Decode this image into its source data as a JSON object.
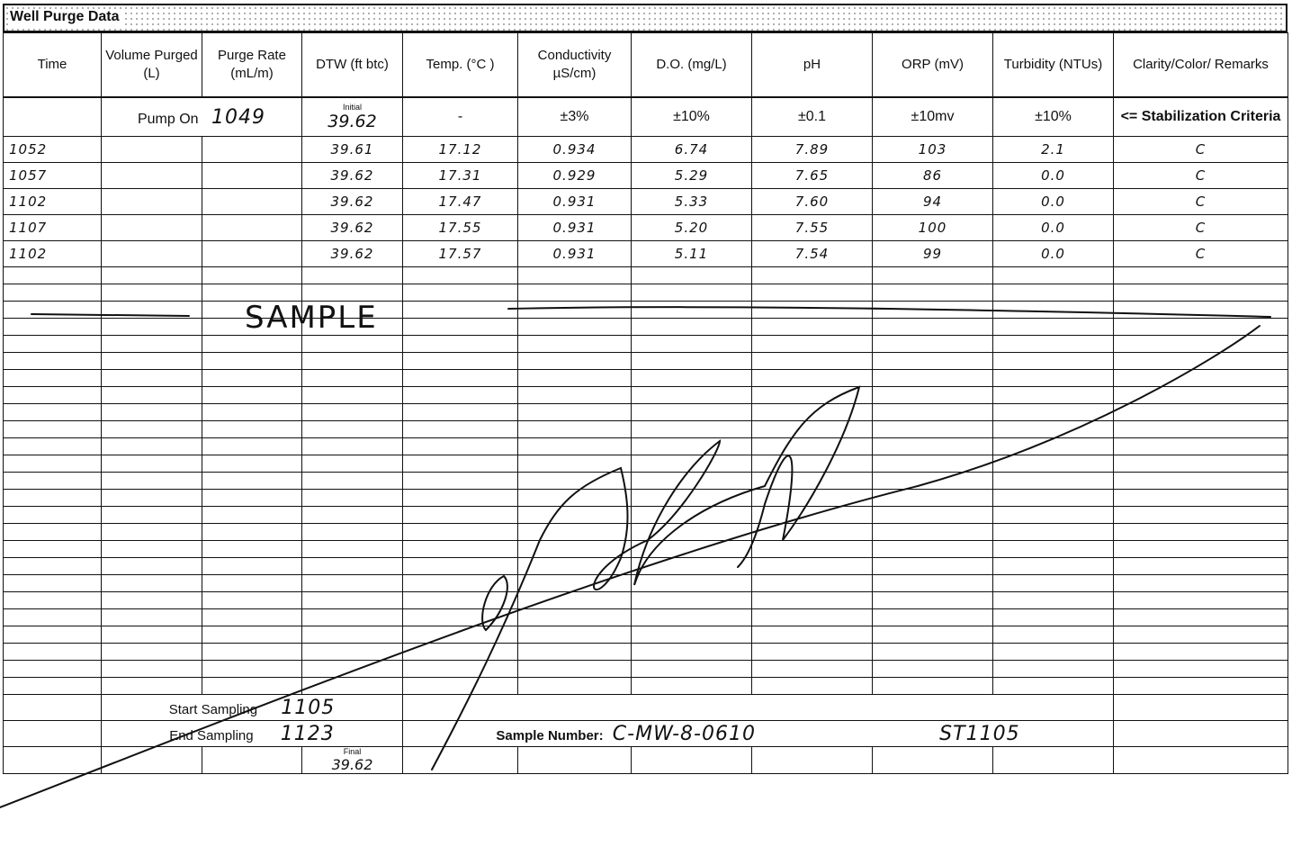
{
  "title": "Well Purge Data",
  "headers": {
    "time": "Time",
    "volume": "Volume Purged (L)",
    "purge_rate": "Purge Rate (mL/m)",
    "dtw": "DTW (ft btc)",
    "temp": "Temp. (°C )",
    "conductivity": "Conductivity µS/cm)",
    "do": "D.O. (mg/L)",
    "ph": "pH",
    "orp": "ORP (mV)",
    "turbidity": "Turbidity (NTUs)",
    "clarity": "Clarity/Color/ Remarks"
  },
  "criteria": {
    "pump_on_label": "Pump On",
    "pump_on_time": "1049",
    "dtw_initial_label": "Initial",
    "dtw_initial": "39.62",
    "temp": "-",
    "conductivity": "±3%",
    "do": "±10%",
    "ph": "±0.1",
    "orp": "±10mv",
    "turbidity": "±10%",
    "stabilization_label": "<= Stabilization Criteria"
  },
  "readings": [
    {
      "time": "1052",
      "dtw": "39.61",
      "temp": "17.12",
      "conductivity": "0.934",
      "do": "6.74",
      "ph": "7.89",
      "orp": "103",
      "turbidity": "2.1",
      "clarity": "C"
    },
    {
      "time": "1057",
      "dtw": "39.62",
      "temp": "17.31",
      "conductivity": "0.929",
      "do": "5.29",
      "ph": "7.65",
      "orp": "86",
      "turbidity": "0.0",
      "clarity": "C"
    },
    {
      "time": "1102",
      "dtw": "39.62",
      "temp": "17.47",
      "conductivity": "0.931",
      "do": "5.33",
      "ph": "7.60",
      "orp": "94",
      "turbidity": "0.0",
      "clarity": "C"
    },
    {
      "time": "1107",
      "dtw": "39.62",
      "temp": "17.55",
      "conductivity": "0.931",
      "do": "5.20",
      "ph": "7.55",
      "orp": "100",
      "turbidity": "0.0",
      "clarity": "C"
    },
    {
      "time": "1102",
      "dtw": "39.62",
      "temp": "17.57",
      "conductivity": "0.931",
      "do": "5.11",
      "ph": "7.54",
      "orp": "99",
      "turbidity": "0.0",
      "clarity": "C"
    }
  ],
  "sample_annotation": "SAMPLE",
  "footer": {
    "start_sampling_label": "Start Sampling",
    "start_sampling_time": "1105",
    "end_sampling_label": "End Sampling",
    "end_sampling_time": "1123",
    "sample_number_label": "Sample Number:",
    "sample_number": "C-MW-8-0610",
    "sample_time_note": "ST1105",
    "dtw_final_label": "Final",
    "dtw_final": "39.62"
  },
  "colors": {
    "ink": "#111111",
    "title_pattern": "#9a9a9a"
  }
}
